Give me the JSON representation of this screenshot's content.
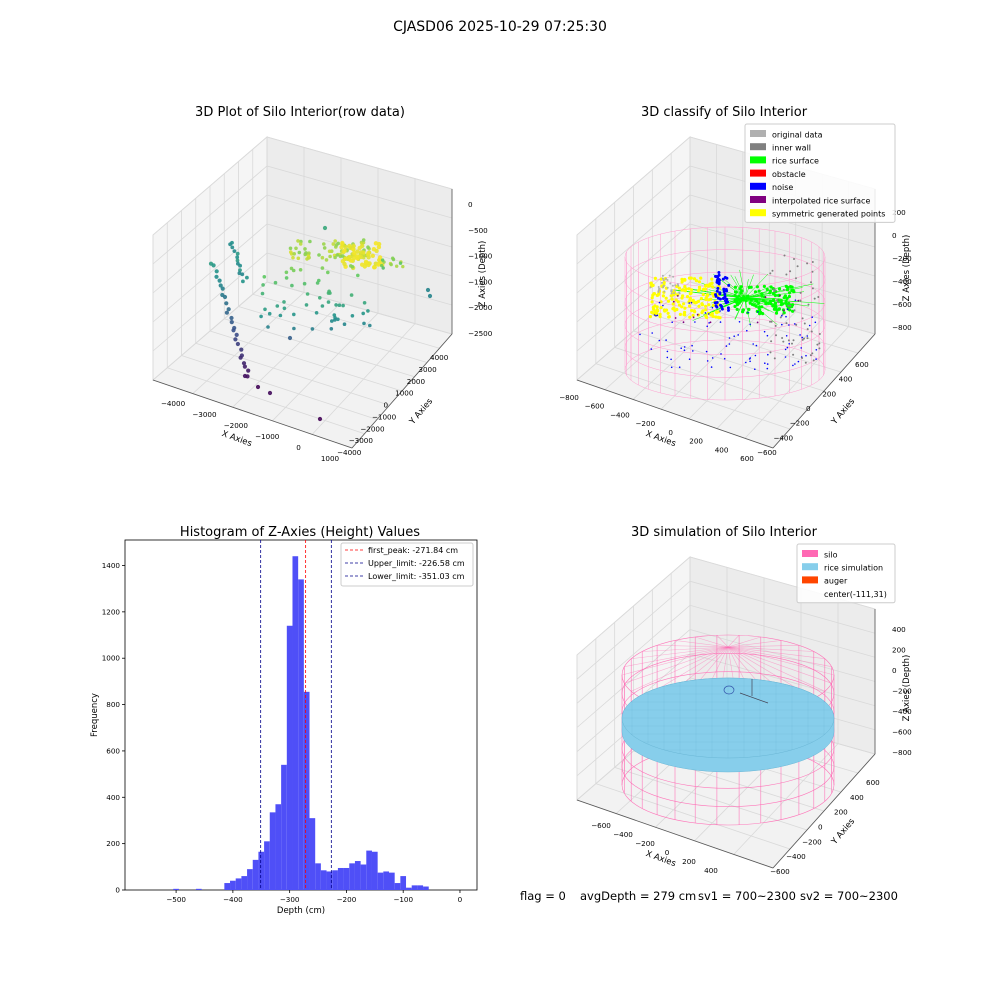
{
  "figure": {
    "suptitle": "CJASD06 2025-10-29 07:25:30",
    "footer": {
      "flag": "flag = 0",
      "avg_depth": "avgDepth = 279 cm",
      "sv1": "sv1 = 700~2300",
      "sv2": "sv2 = 700~2300"
    }
  },
  "colors": {
    "histogram_bar": "#4f4ff7",
    "first_peak": "#ff0000",
    "limit_line": "#00008b",
    "silo": "#ff69b4",
    "rice_simulation": "#87ceeb",
    "auger": "#ff4500",
    "original": "#b0b0b0",
    "inner_wall": "#808080",
    "rice_surface": "#00ff00",
    "obstacle": "#ff0000",
    "noise": "#0000ff",
    "interpolated": "#800080",
    "symmetric": "#ffff00",
    "pane": "#f2f2f2",
    "grid": "#d9d9d9"
  },
  "chart_data": [
    {
      "type": "scatter",
      "title": "3D Plot of Silo Interior(row data)",
      "xlabel": "X Axies",
      "ylabel": "Y Axies",
      "zlabel": "Z Axies (Depth)",
      "xticks": [
        "−4000",
        "−3000",
        "−2000",
        "−1000",
        "0",
        "1000"
      ],
      "yticks": [
        "−4000",
        "−3000",
        "−2000",
        "−1000",
        "0",
        "1000",
        "2000",
        "3000",
        "4000"
      ],
      "zticks": [
        "0",
        "−500",
        "−1000",
        "−1500",
        "−2000",
        "−2500"
      ],
      "xlim": [
        -4500,
        1000
      ],
      "ylim": [
        -4000,
        4000
      ],
      "zlim": [
        -2600,
        0
      ],
      "colormap": "viridis"
    },
    {
      "type": "scatter",
      "title": "3D classify of Silo Interior",
      "xlabel": "X Axies",
      "ylabel": "Y Axies",
      "zlabel": "Z Axies (Depth)",
      "xticks": [
        "−800",
        "−600",
        "−400",
        "−200",
        "0",
        "200",
        "400",
        "600"
      ],
      "yticks": [
        "−600",
        "−400",
        "−200",
        "0",
        "200",
        "400",
        "600"
      ],
      "zticks": [
        "200",
        "0",
        "−200",
        "−400",
        "−600",
        "−800"
      ],
      "xlim": [
        -800,
        600
      ],
      "ylim": [
        -600,
        600
      ],
      "zlim": [
        -900,
        300
      ],
      "legend": [
        "original data",
        "inner wall",
        "rice surface",
        "obstacle",
        "noise",
        "interpolated rice surface",
        "symmetric generated points"
      ],
      "legend_position": "top-right"
    },
    {
      "type": "bar",
      "title": "Histogram of Z-Axies (Height) Values",
      "xlabel": "Depth (cm)",
      "ylabel": "Frequency",
      "xlim": [
        -590,
        30
      ],
      "ylim": [
        0,
        1510
      ],
      "xticks": [
        -500,
        -400,
        -300,
        -200,
        -100,
        0
      ],
      "xtick_labels": [
        "−500",
        "−400",
        "−300",
        "−200",
        "−100",
        "0"
      ],
      "yticks": [
        0,
        200,
        400,
        600,
        800,
        1000,
        1200,
        1400
      ],
      "bin_width": 10,
      "bin_starts": [
        -505,
        -465,
        -415,
        -405,
        -395,
        -385,
        -375,
        -365,
        -355,
        -345,
        -335,
        -325,
        -315,
        -305,
        -295,
        -285,
        -275,
        -265,
        -255,
        -245,
        -235,
        -225,
        -215,
        -205,
        -195,
        -185,
        -175,
        -165,
        -155,
        -145,
        -135,
        -125,
        -115,
        -105,
        -95,
        -85,
        -75,
        -65,
        -55,
        -45,
        -35,
        -25,
        -15,
        -5
      ],
      "values": [
        5,
        5,
        30,
        40,
        50,
        60,
        90,
        130,
        165,
        210,
        335,
        370,
        540,
        1140,
        1440,
        1340,
        855,
        310,
        115,
        85,
        80,
        85,
        95,
        95,
        115,
        125,
        110,
        170,
        165,
        75,
        80,
        75,
        30,
        60,
        10,
        20,
        20,
        15,
        0,
        0,
        0,
        0,
        0,
        0
      ],
      "vlines": [
        {
          "x": -271.84,
          "label": "first_peak: -271.84 cm",
          "style": "first_peak"
        },
        {
          "x": -226.58,
          "label": "Upper_limit: -226.58 cm",
          "style": "limit"
        },
        {
          "x": -351.03,
          "label": "Lower_limit: -351.03 cm",
          "style": "limit"
        }
      ],
      "legend_position": "top-right"
    },
    {
      "type": "surface",
      "title": "3D simulation of Silo Interior",
      "xlabel": "X Axies",
      "ylabel": "Y Axies",
      "zlabel": "Z Axies (Depth)",
      "xticks": [
        "−600",
        "−400",
        "−200",
        "0",
        "200",
        "400"
      ],
      "yticks": [
        "−600",
        "−400",
        "−200",
        "0",
        "200",
        "400",
        "600"
      ],
      "zticks": [
        "400",
        "200",
        "0",
        "−200",
        "−400",
        "−600",
        "−800"
      ],
      "xlim": [
        -700,
        500
      ],
      "ylim": [
        -600,
        600
      ],
      "zlim": [
        -900,
        450
      ],
      "legend": [
        "silo",
        "rice simulation",
        "auger",
        "center(-111,31)"
      ],
      "legend_position": "top-right"
    }
  ]
}
